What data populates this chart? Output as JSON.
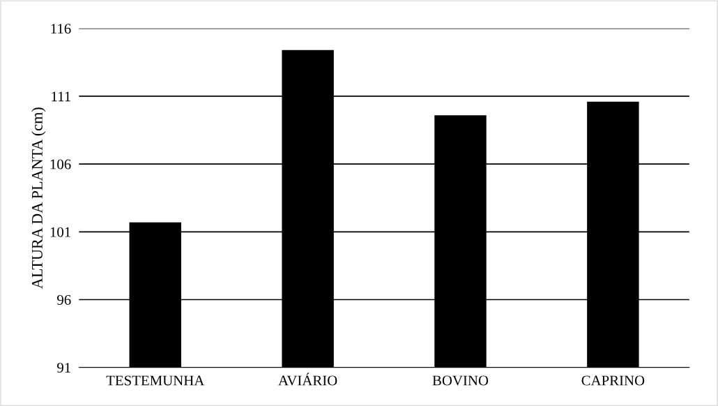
{
  "chart_data": {
    "type": "bar",
    "ylabel": "ALTURA DA PLANTA (cm)",
    "categories": [
      "TESTEMUNHA",
      "AVIÁRIO",
      "BOVINO",
      "CAPRINO"
    ],
    "values": [
      101.7,
      114.4,
      109.6,
      110.6
    ],
    "color": "#000000",
    "ylim": [
      91,
      116
    ],
    "yticks": [
      91,
      96,
      101,
      106,
      111,
      116
    ],
    "grid": "y",
    "legend": false
  }
}
